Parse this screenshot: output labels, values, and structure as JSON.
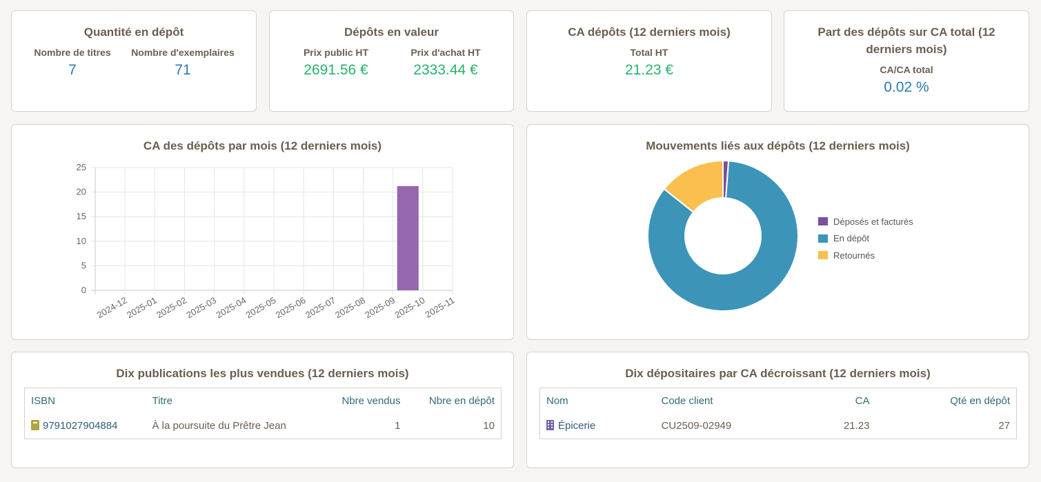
{
  "stats": {
    "quantite": {
      "title": "Quantité en dépôt",
      "titres_label": "Nombre de titres",
      "titres_value": "7",
      "exemplaires_label": "Nombre d'exemplaires",
      "exemplaires_value": "71"
    },
    "valeur": {
      "title": "Dépôts en valeur",
      "public_label": "Prix public HT",
      "public_value": "2691.56 €",
      "achat_label": "Prix d'achat HT",
      "achat_value": "2333.44 €"
    },
    "ca": {
      "title": "CA dépôts (12 derniers mois)",
      "total_label": "Total HT",
      "total_value": "21.23 €"
    },
    "part": {
      "title_line1": "Part des dépôts sur CA total (12",
      "title_line2": "derniers mois)",
      "label": "CA/CA total",
      "value": "0.02 %"
    }
  },
  "bar_chart": {
    "title": "CA des dépôts par mois (12 derniers mois)"
  },
  "donut_chart": {
    "title": "Mouvements liés aux dépôts (12 derniers mois)"
  },
  "chart_data": [
    {
      "type": "bar",
      "title": "CA des dépôts par mois (12 derniers mois)",
      "categories": [
        "2024-12",
        "2025-01",
        "2025-02",
        "2025-03",
        "2025-04",
        "2025-05",
        "2025-06",
        "2025-07",
        "2025-08",
        "2025-09",
        "2025-10",
        "2025-11"
      ],
      "values": [
        0,
        0,
        0,
        0,
        0,
        0,
        0,
        0,
        0,
        0,
        21.23,
        0
      ],
      "ylim": [
        0,
        25
      ],
      "yticks": [
        "0",
        "5",
        "10",
        "15",
        "20",
        "25"
      ],
      "color": "#9467ae",
      "grid": true
    },
    {
      "type": "pie",
      "title": "Mouvements liés aux dépôts (12 derniers mois)",
      "labels": [
        "Déposés et facturés",
        "En dépôt",
        "Retournés"
      ],
      "values": [
        1,
        71,
        12
      ],
      "colors": [
        "#7b4f9e",
        "#3c95b8",
        "#fbbf4f"
      ],
      "legend": "right"
    }
  ],
  "top_publications": {
    "title": "Dix publications les plus vendues (12 derniers mois)",
    "headers": [
      "ISBN",
      "Titre",
      "Nbre vendus",
      "Nbre en dépôt"
    ],
    "rows": [
      {
        "isbn": "9791027904884",
        "titre": "À la poursuite du Prêtre Jean",
        "vendus": "1",
        "depot": "10"
      }
    ]
  },
  "top_depositaires": {
    "title": "Dix dépositaires par CA décroissant (12 derniers mois)",
    "headers": [
      "Nom",
      "Code client",
      "CA",
      "Qté en dépôt"
    ],
    "rows": [
      {
        "nom": "Épicerie",
        "code": "CU2509-02949",
        "ca": "21.23",
        "qte": "27"
      }
    ]
  }
}
